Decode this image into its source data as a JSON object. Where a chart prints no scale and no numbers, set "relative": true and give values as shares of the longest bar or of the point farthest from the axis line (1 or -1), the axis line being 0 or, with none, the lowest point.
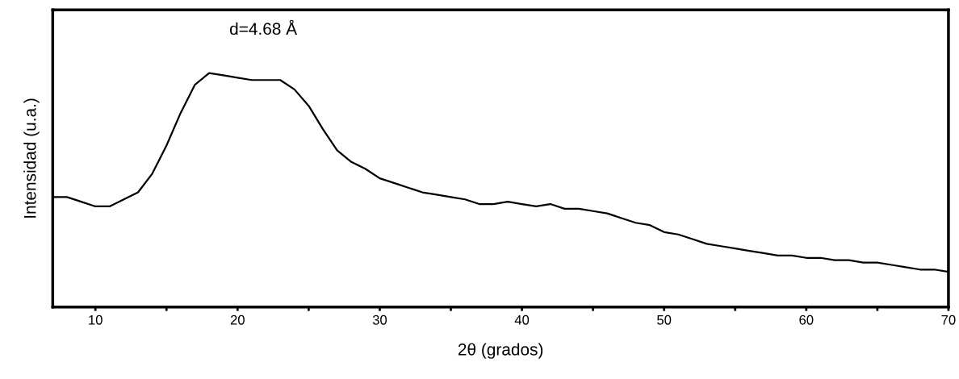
{
  "chart_data": {
    "type": "line",
    "relative": true,
    "xlabel": "2θ (grados)",
    "ylabel": "Intensidad (u.a.)",
    "annotations": [
      "d=4.68 Å"
    ],
    "x": [
      7,
      8,
      9,
      10,
      11,
      12,
      13,
      14,
      15,
      16,
      17,
      18,
      19,
      20,
      21,
      22,
      23,
      24,
      25,
      26,
      27,
      28,
      29,
      30,
      31,
      32,
      33,
      34,
      35,
      36,
      37,
      38,
      39,
      40,
      41,
      42,
      43,
      44,
      45,
      46,
      47,
      48,
      49,
      50,
      51,
      52,
      53,
      54,
      55,
      56,
      57,
      58,
      59,
      60,
      61,
      62,
      63,
      64,
      65,
      66,
      67,
      68,
      69,
      70
    ],
    "series": [
      {
        "color": "#000000",
        "values": [
          0.47,
          0.47,
          0.45,
          0.43,
          0.43,
          0.46,
          0.49,
          0.57,
          0.69,
          0.83,
          0.95,
          1.0,
          0.99,
          0.98,
          0.97,
          0.97,
          0.97,
          0.93,
          0.86,
          0.76,
          0.67,
          0.62,
          0.59,
          0.55,
          0.53,
          0.51,
          0.49,
          0.48,
          0.47,
          0.46,
          0.44,
          0.44,
          0.45,
          0.44,
          0.43,
          0.44,
          0.42,
          0.42,
          0.41,
          0.4,
          0.38,
          0.36,
          0.35,
          0.32,
          0.31,
          0.29,
          0.27,
          0.26,
          0.25,
          0.24,
          0.23,
          0.22,
          0.22,
          0.21,
          0.21,
          0.2,
          0.2,
          0.19,
          0.19,
          0.18,
          0.17,
          0.16,
          0.16,
          0.15
        ]
      }
    ],
    "xlim": [
      7,
      70
    ],
    "xticks": [
      10,
      {
        "value": 15,
        "label": null
      },
      20,
      {
        "value": 25,
        "label": null
      },
      30,
      {
        "value": 35,
        "label": null
      },
      40,
      {
        "value": 45,
        "label": null
      },
      50,
      {
        "value": 55,
        "label": null
      },
      60,
      {
        "value": 65,
        "label": null
      },
      70
    ],
    "tick_labels": "x",
    "grid": false,
    "legend": false,
    "marker": "none",
    "line_style": "solid"
  }
}
